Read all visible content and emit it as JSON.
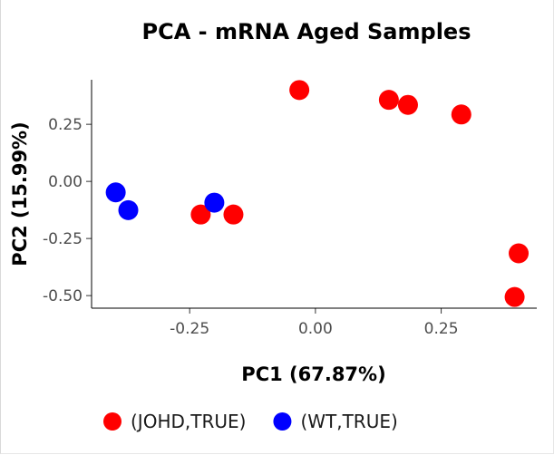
{
  "chart_data": {
    "type": "scatter",
    "title": "PCA - mRNA Aged Samples",
    "xlabel": "PC1 (67.87%)",
    "ylabel": "PC2 (15.99%)",
    "xlim": [
      -0.445,
      0.44
    ],
    "ylim": [
      -0.555,
      0.445
    ],
    "x_ticks": [
      -0.25,
      0.0,
      0.25
    ],
    "x_tick_labels": [
      "-0.25",
      "0.00",
      "0.25"
    ],
    "y_ticks": [
      -0.5,
      -0.25,
      0.0,
      0.25
    ],
    "y_tick_labels": [
      "-0.50",
      "-0.25",
      "0.00",
      "0.25"
    ],
    "grid": false,
    "legend_position": "bottom",
    "series": [
      {
        "name": "(JOHD,TRUE)",
        "color": "#ff0000",
        "points": [
          {
            "x": -0.032,
            "y": 0.4
          },
          {
            "x": 0.146,
            "y": 0.357
          },
          {
            "x": 0.184,
            "y": 0.335
          },
          {
            "x": 0.29,
            "y": 0.293
          },
          {
            "x": 0.404,
            "y": -0.315
          },
          {
            "x": 0.396,
            "y": -0.506
          },
          {
            "x": -0.228,
            "y": -0.145
          },
          {
            "x": -0.163,
            "y": -0.145
          }
        ]
      },
      {
        "name": "(WT,TRUE)",
        "color": "#0000ff",
        "points": [
          {
            "x": -0.397,
            "y": -0.048
          },
          {
            "x": -0.372,
            "y": -0.126
          },
          {
            "x": -0.201,
            "y": -0.093
          }
        ]
      }
    ]
  }
}
